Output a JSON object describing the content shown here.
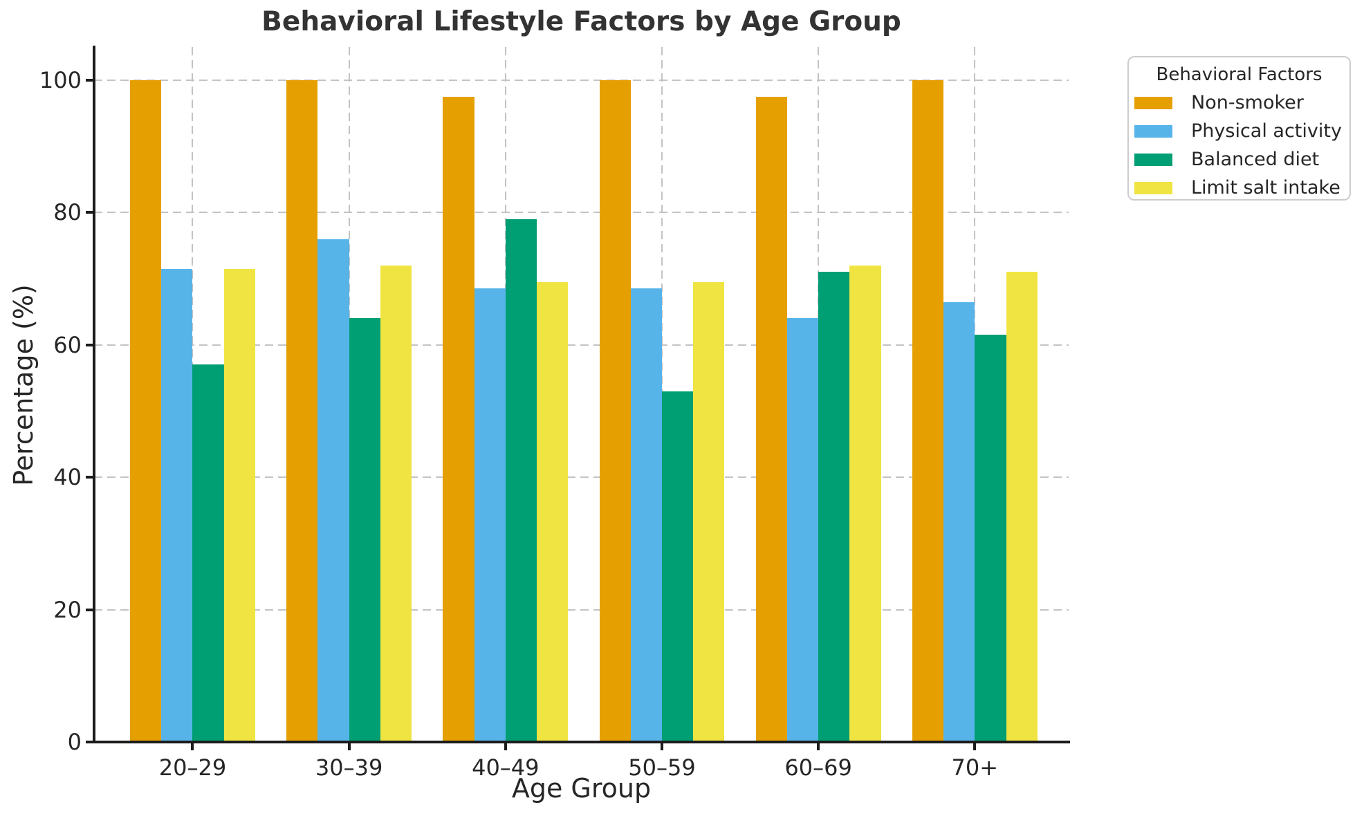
{
  "figure": {
    "background": "#ffffff"
  },
  "chart_data": {
    "type": "bar",
    "title": "Behavioral Lifestyle Factors by Age Group",
    "xlabel": "Age Group",
    "ylabel": "Percentage (%)",
    "categories": [
      "20–29",
      "30–39",
      "40–49",
      "50–59",
      "60–69",
      "70+"
    ],
    "series": [
      {
        "name": "Non-smoker",
        "color": "#E69F00",
        "values": [
          100,
          100,
          97.5,
          100,
          97.5,
          100
        ]
      },
      {
        "name": "Physical activity",
        "color": "#56B4E9",
        "values": [
          71.5,
          76,
          68.5,
          68.5,
          64,
          66.5
        ]
      },
      {
        "name": "Balanced diet",
        "color": "#009E73",
        "values": [
          57,
          64,
          79,
          53,
          71,
          61.5
        ]
      },
      {
        "name": "Limit salt intake",
        "color": "#F0E442",
        "values": [
          71.5,
          72,
          69.5,
          69.5,
          72,
          71
        ]
      }
    ],
    "ylim": [
      0,
      105
    ],
    "yticks": [
      0,
      20,
      40,
      60,
      80,
      100
    ],
    "xlim": [
      -0.63,
      5.6
    ],
    "bar_width": 0.2,
    "grid": true,
    "grid_linestyle": "dashed",
    "legend": {
      "title": "Behavioral Factors",
      "position": "upper-right-outside"
    },
    "colors": {
      "grid": "#c3c3c3",
      "spine": "#1c1c1c",
      "tick_label": "#262626",
      "title": "#333333",
      "legend_border": "#cccccc",
      "background": "#ffffff"
    }
  }
}
